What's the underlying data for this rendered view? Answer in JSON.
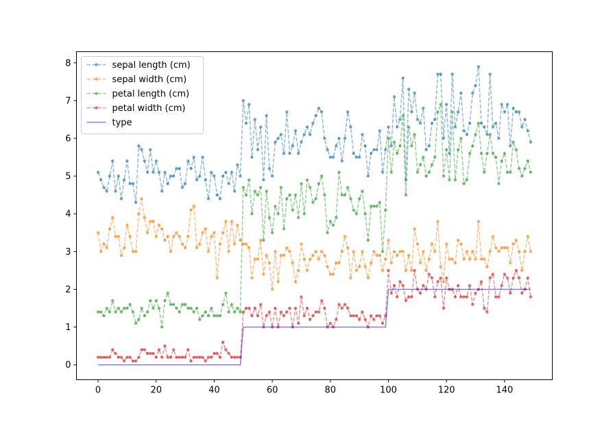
{
  "chart_data": {
    "type": "line",
    "title": "",
    "xlabel": "",
    "ylabel": "",
    "xlim": [
      -7.45,
      156.45
    ],
    "ylim": [
      -0.395,
      8.295
    ],
    "xticks": [
      0,
      20,
      40,
      60,
      80,
      100,
      120,
      140
    ],
    "yticks": [
      0,
      1,
      2,
      3,
      4,
      5,
      6,
      7,
      8
    ],
    "grid": false,
    "legend_position": "top-left",
    "x": [
      0,
      1,
      2,
      3,
      4,
      5,
      6,
      7,
      8,
      9,
      10,
      11,
      12,
      13,
      14,
      15,
      16,
      17,
      18,
      19,
      20,
      21,
      22,
      23,
      24,
      25,
      26,
      27,
      28,
      29,
      30,
      31,
      32,
      33,
      34,
      35,
      36,
      37,
      38,
      39,
      40,
      41,
      42,
      43,
      44,
      45,
      46,
      47,
      48,
      49,
      50,
      51,
      52,
      53,
      54,
      55,
      56,
      57,
      58,
      59,
      60,
      61,
      62,
      63,
      64,
      65,
      66,
      67,
      68,
      69,
      70,
      71,
      72,
      73,
      74,
      75,
      76,
      77,
      78,
      79,
      80,
      81,
      82,
      83,
      84,
      85,
      86,
      87,
      88,
      89,
      90,
      91,
      92,
      93,
      94,
      95,
      96,
      97,
      98,
      99,
      100,
      101,
      102,
      103,
      104,
      105,
      106,
      107,
      108,
      109,
      110,
      111,
      112,
      113,
      114,
      115,
      116,
      117,
      118,
      119,
      120,
      121,
      122,
      123,
      124,
      125,
      126,
      127,
      128,
      129,
      130,
      131,
      132,
      133,
      134,
      135,
      136,
      137,
      138,
      139,
      140,
      141,
      142,
      143,
      144,
      145,
      146,
      147,
      148,
      149
    ],
    "series": [
      {
        "name": "sepal length (cm)",
        "color": "#1f77b4",
        "style": "dashed-marker",
        "values": [
          5.1,
          4.9,
          4.7,
          4.6,
          5.0,
          5.4,
          4.6,
          5.0,
          4.4,
          4.9,
          5.4,
          4.8,
          4.8,
          4.3,
          5.8,
          5.7,
          5.4,
          5.1,
          5.7,
          5.1,
          5.4,
          5.1,
          4.6,
          5.1,
          4.8,
          5.0,
          5.0,
          5.2,
          5.2,
          4.7,
          4.8,
          5.4,
          5.2,
          5.5,
          4.9,
          5.0,
          5.5,
          4.9,
          4.4,
          5.1,
          5.0,
          4.5,
          4.4,
          5.0,
          5.1,
          4.8,
          5.1,
          4.6,
          5.3,
          5.0,
          7.0,
          6.4,
          6.9,
          5.5,
          6.5,
          5.7,
          6.3,
          4.9,
          6.6,
          5.2,
          5.0,
          5.9,
          6.0,
          6.1,
          5.6,
          6.7,
          5.6,
          5.8,
          6.2,
          5.6,
          5.9,
          6.1,
          6.3,
          6.1,
          6.4,
          6.6,
          6.8,
          6.7,
          6.0,
          5.7,
          5.5,
          5.5,
          5.8,
          6.0,
          5.4,
          6.0,
          6.7,
          6.3,
          5.6,
          5.5,
          5.5,
          6.1,
          5.8,
          5.0,
          5.6,
          5.7,
          5.7,
          6.2,
          5.1,
          5.7,
          6.3,
          5.8,
          7.1,
          6.3,
          6.5,
          7.6,
          4.9,
          7.3,
          6.7,
          7.2,
          6.5,
          6.4,
          6.8,
          5.7,
          5.8,
          6.4,
          6.5,
          7.7,
          7.7,
          6.0,
          6.9,
          5.6,
          7.7,
          6.3,
          6.7,
          7.2,
          6.2,
          6.1,
          6.4,
          7.2,
          7.4,
          7.9,
          6.4,
          6.3,
          6.1,
          7.7,
          6.3,
          6.4,
          6.0,
          6.9,
          6.7,
          6.9,
          5.8,
          6.8,
          6.7,
          6.7,
          6.3,
          6.5,
          6.2,
          5.9
        ]
      },
      {
        "name": "sepal width (cm)",
        "color": "#ff7f0e",
        "style": "dashed-marker",
        "values": [
          3.5,
          3.0,
          3.2,
          3.1,
          3.6,
          3.9,
          3.4,
          3.4,
          2.9,
          3.1,
          3.7,
          3.4,
          3.0,
          3.0,
          4.0,
          4.4,
          3.9,
          3.5,
          3.8,
          3.8,
          3.4,
          3.7,
          3.6,
          3.3,
          3.4,
          3.0,
          3.4,
          3.5,
          3.4,
          3.2,
          3.1,
          3.4,
          4.1,
          4.2,
          3.1,
          3.2,
          3.5,
          3.6,
          3.0,
          3.4,
          3.5,
          2.3,
          3.2,
          3.5,
          3.8,
          3.0,
          3.8,
          3.2,
          3.7,
          3.3,
          3.2,
          3.2,
          3.1,
          2.3,
          2.8,
          2.8,
          3.3,
          2.4,
          2.9,
          2.7,
          2.0,
          3.0,
          2.2,
          2.9,
          2.9,
          3.1,
          3.0,
          2.7,
          2.2,
          2.5,
          3.2,
          2.8,
          2.5,
          2.8,
          2.9,
          3.0,
          2.8,
          3.0,
          2.9,
          2.6,
          2.4,
          2.4,
          2.7,
          2.7,
          3.0,
          3.4,
          3.1,
          2.3,
          3.0,
          2.5,
          2.6,
          3.0,
          2.6,
          2.3,
          2.7,
          3.0,
          2.9,
          2.9,
          2.5,
          2.8,
          3.3,
          2.7,
          3.0,
          2.9,
          3.0,
          3.0,
          2.5,
          2.9,
          2.5,
          3.6,
          3.2,
          2.7,
          3.0,
          2.5,
          2.8,
          3.2,
          3.0,
          3.8,
          2.6,
          2.2,
          3.2,
          2.8,
          2.8,
          2.7,
          3.3,
          3.2,
          2.8,
          3.0,
          2.8,
          3.0,
          2.8,
          3.8,
          2.8,
          2.8,
          2.6,
          3.0,
          3.4,
          3.1,
          3.0,
          3.1,
          3.1,
          3.1,
          2.7,
          3.2,
          3.3,
          3.0,
          2.5,
          3.0,
          3.4,
          3.0
        ]
      },
      {
        "name": "petal length (cm)",
        "color": "#2ca02c",
        "style": "dashed-marker",
        "values": [
          1.4,
          1.4,
          1.3,
          1.5,
          1.4,
          1.7,
          1.4,
          1.5,
          1.4,
          1.5,
          1.5,
          1.6,
          1.4,
          1.1,
          1.2,
          1.5,
          1.3,
          1.4,
          1.7,
          1.5,
          1.7,
          1.5,
          1.0,
          1.7,
          1.9,
          1.6,
          1.6,
          1.5,
          1.4,
          1.6,
          1.6,
          1.5,
          1.5,
          1.4,
          1.5,
          1.2,
          1.3,
          1.4,
          1.3,
          1.5,
          1.3,
          1.3,
          1.3,
          1.6,
          1.9,
          1.4,
          1.6,
          1.4,
          1.5,
          1.4,
          4.7,
          4.5,
          4.9,
          4.0,
          4.6,
          4.5,
          4.7,
          3.3,
          4.6,
          3.9,
          3.5,
          4.2,
          4.0,
          4.7,
          3.6,
          4.4,
          4.5,
          4.1,
          4.5,
          3.9,
          4.8,
          4.0,
          4.9,
          4.7,
          4.3,
          4.4,
          4.8,
          5.0,
          4.5,
          3.5,
          3.8,
          3.7,
          3.9,
          5.1,
          4.5,
          4.5,
          4.7,
          4.4,
          4.1,
          4.0,
          4.4,
          4.6,
          4.0,
          3.3,
          4.2,
          4.2,
          4.2,
          4.3,
          3.0,
          4.1,
          6.0,
          5.1,
          5.9,
          5.6,
          5.8,
          6.6,
          4.5,
          6.3,
          5.8,
          6.1,
          5.1,
          5.3,
          5.5,
          5.0,
          5.1,
          5.3,
          5.5,
          6.7,
          6.9,
          5.0,
          5.7,
          4.9,
          6.7,
          4.9,
          5.7,
          6.0,
          4.8,
          4.9,
          5.6,
          5.8,
          6.1,
          6.4,
          5.6,
          5.1,
          5.6,
          6.1,
          5.6,
          5.5,
          4.8,
          5.4,
          5.6,
          5.1,
          5.1,
          5.9,
          5.7,
          5.2,
          5.0,
          5.2,
          5.4,
          5.1
        ]
      },
      {
        "name": "petal width (cm)",
        "color": "#d62728",
        "style": "dashed-marker",
        "values": [
          0.2,
          0.2,
          0.2,
          0.2,
          0.2,
          0.4,
          0.3,
          0.2,
          0.2,
          0.1,
          0.2,
          0.2,
          0.1,
          0.1,
          0.2,
          0.4,
          0.4,
          0.3,
          0.3,
          0.3,
          0.2,
          0.4,
          0.2,
          0.5,
          0.2,
          0.2,
          0.4,
          0.2,
          0.2,
          0.2,
          0.2,
          0.4,
          0.1,
          0.2,
          0.2,
          0.2,
          0.2,
          0.1,
          0.2,
          0.2,
          0.3,
          0.3,
          0.2,
          0.6,
          0.4,
          0.3,
          0.2,
          0.2,
          0.2,
          0.2,
          1.4,
          1.5,
          1.5,
          1.3,
          1.5,
          1.3,
          1.6,
          1.0,
          1.3,
          1.4,
          1.0,
          1.5,
          1.0,
          1.4,
          1.3,
          1.4,
          1.5,
          1.0,
          1.5,
          1.1,
          1.8,
          1.3,
          1.5,
          1.2,
          1.3,
          1.4,
          1.4,
          1.7,
          1.5,
          1.0,
          1.1,
          1.0,
          1.2,
          1.6,
          1.5,
          1.6,
          1.5,
          1.3,
          1.3,
          1.3,
          1.2,
          1.4,
          1.2,
          1.0,
          1.3,
          1.2,
          1.3,
          1.3,
          1.1,
          1.3,
          2.5,
          1.9,
          2.1,
          1.8,
          2.2,
          2.1,
          1.7,
          1.8,
          1.8,
          2.5,
          2.0,
          1.9,
          2.1,
          2.0,
          2.4,
          2.3,
          1.8,
          2.2,
          2.3,
          1.5,
          2.3,
          2.0,
          2.0,
          1.8,
          2.1,
          1.8,
          1.8,
          1.8,
          2.1,
          1.6,
          1.9,
          2.0,
          2.2,
          1.5,
          1.4,
          2.3,
          2.4,
          1.8,
          1.8,
          2.1,
          2.4,
          2.3,
          1.9,
          2.3,
          2.5,
          2.3,
          1.9,
          2.0,
          2.3,
          1.8
        ]
      },
      {
        "name": "type",
        "color": "#0000ff",
        "style": "solid",
        "values": [
          0,
          0,
          0,
          0,
          0,
          0,
          0,
          0,
          0,
          0,
          0,
          0,
          0,
          0,
          0,
          0,
          0,
          0,
          0,
          0,
          0,
          0,
          0,
          0,
          0,
          0,
          0,
          0,
          0,
          0,
          0,
          0,
          0,
          0,
          0,
          0,
          0,
          0,
          0,
          0,
          0,
          0,
          0,
          0,
          0,
          0,
          0,
          0,
          0,
          0,
          1,
          1,
          1,
          1,
          1,
          1,
          1,
          1,
          1,
          1,
          1,
          1,
          1,
          1,
          1,
          1,
          1,
          1,
          1,
          1,
          1,
          1,
          1,
          1,
          1,
          1,
          1,
          1,
          1,
          1,
          1,
          1,
          1,
          1,
          1,
          1,
          1,
          1,
          1,
          1,
          1,
          1,
          1,
          1,
          1,
          1,
          1,
          1,
          1,
          1,
          2,
          2,
          2,
          2,
          2,
          2,
          2,
          2,
          2,
          2,
          2,
          2,
          2,
          2,
          2,
          2,
          2,
          2,
          2,
          2,
          2,
          2,
          2,
          2,
          2,
          2,
          2,
          2,
          2,
          2,
          2,
          2,
          2,
          2,
          2,
          2,
          2,
          2,
          2,
          2,
          2,
          2,
          2,
          2,
          2,
          2,
          2,
          2,
          2,
          2
        ]
      }
    ]
  }
}
